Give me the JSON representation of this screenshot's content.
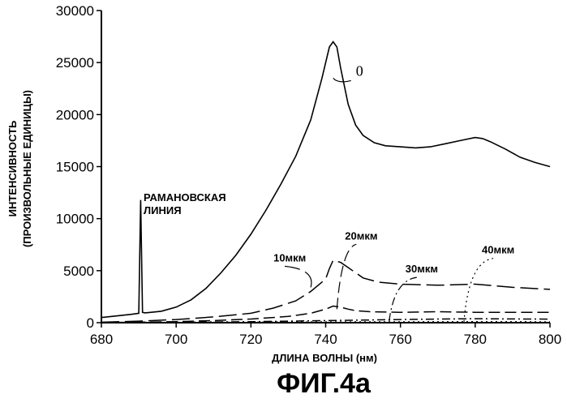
{
  "chart_data": {
    "type": "line",
    "title": "",
    "xlabel": "ДЛИНА ВОЛНЫ (нм)",
    "ylabel_lines": [
      "ИНТЕНСИВНОСТЬ",
      "(ПРОИЗВОЛЬНЫЕ ЕДИНИЦЫ)"
    ],
    "xlim": [
      680,
      800
    ],
    "ylim": [
      0,
      30000
    ],
    "x_ticks": [
      680,
      700,
      720,
      740,
      760,
      780,
      800
    ],
    "y_ticks": [
      0,
      5000,
      10000,
      15000,
      20000,
      25000,
      30000
    ],
    "grid": false,
    "legend": "none",
    "annotations": [
      {
        "text_lines": [
          "РАМАНОВСКАЯ",
          "ЛИНИЯ"
        ],
        "x": 691,
        "y": 11500
      }
    ],
    "series": [
      {
        "name": "0",
        "style": "solid",
        "x": [
          680,
          684,
          688,
          690,
          690.5,
          691,
          691.5,
          692,
          696,
          700,
          704,
          708,
          712,
          716,
          720,
          724,
          728,
          732,
          736,
          739,
          741,
          742,
          743,
          744,
          746,
          748,
          750,
          753,
          756,
          760,
          764,
          768,
          772,
          776,
          780,
          782,
          784,
          788,
          792,
          796,
          800
        ],
        "y": [
          500,
          650,
          800,
          900,
          11800,
          1000,
          950,
          950,
          1100,
          1500,
          2200,
          3300,
          4800,
          6500,
          8500,
          10800,
          13300,
          16000,
          19500,
          23500,
          26500,
          27000,
          26500,
          24500,
          21000,
          19000,
          18000,
          17300,
          17000,
          16900,
          16800,
          16900,
          17200,
          17500,
          17800,
          17700,
          17400,
          16700,
          15900,
          15400,
          15000
        ],
        "label_x": 742,
        "label_y": 23500
      },
      {
        "name": "10мкм",
        "style": "long-dash",
        "x": [
          680,
          690,
          700,
          710,
          720,
          726,
          732,
          736,
          740,
          741,
          742,
          744,
          746,
          748,
          750,
          754,
          760,
          770,
          780,
          790,
          800
        ],
        "y": [
          50,
          150,
          300,
          550,
          900,
          1400,
          2100,
          3000,
          4200,
          5200,
          6000,
          5800,
          5300,
          4800,
          4300,
          3900,
          3700,
          3600,
          3700,
          3400,
          3200
        ],
        "label_x": 736,
        "label_y": 3400
      },
      {
        "name": "20мкм",
        "style": "dash",
        "x": [
          680,
          690,
          700,
          710,
          720,
          730,
          736,
          740,
          742,
          744,
          746,
          748,
          752,
          760,
          770,
          780,
          790,
          800
        ],
        "y": [
          20,
          50,
          100,
          200,
          350,
          600,
          900,
          1300,
          1600,
          1500,
          1300,
          1150,
          1050,
          1000,
          1050,
          1000,
          1000,
          1000
        ],
        "label_x": 743,
        "label_y": 1300
      },
      {
        "name": "30мкм",
        "style": "dash-dot",
        "x": [
          680,
          700,
          720,
          740,
          750,
          760,
          770,
          780,
          790,
          800
        ],
        "y": [
          10,
          40,
          90,
          200,
          250,
          300,
          350,
          380,
          360,
          340
        ],
        "label_x": 757,
        "label_y": 150
      },
      {
        "name": "40мкм",
        "style": "dotted",
        "x": [
          680,
          700,
          720,
          740,
          760,
          780,
          800
        ],
        "y": [
          5,
          15,
          40,
          70,
          80,
          90,
          80
        ],
        "label_x": 777,
        "label_y": 100
      }
    ]
  },
  "figure": {
    "caption": "ФИГ.4а"
  }
}
